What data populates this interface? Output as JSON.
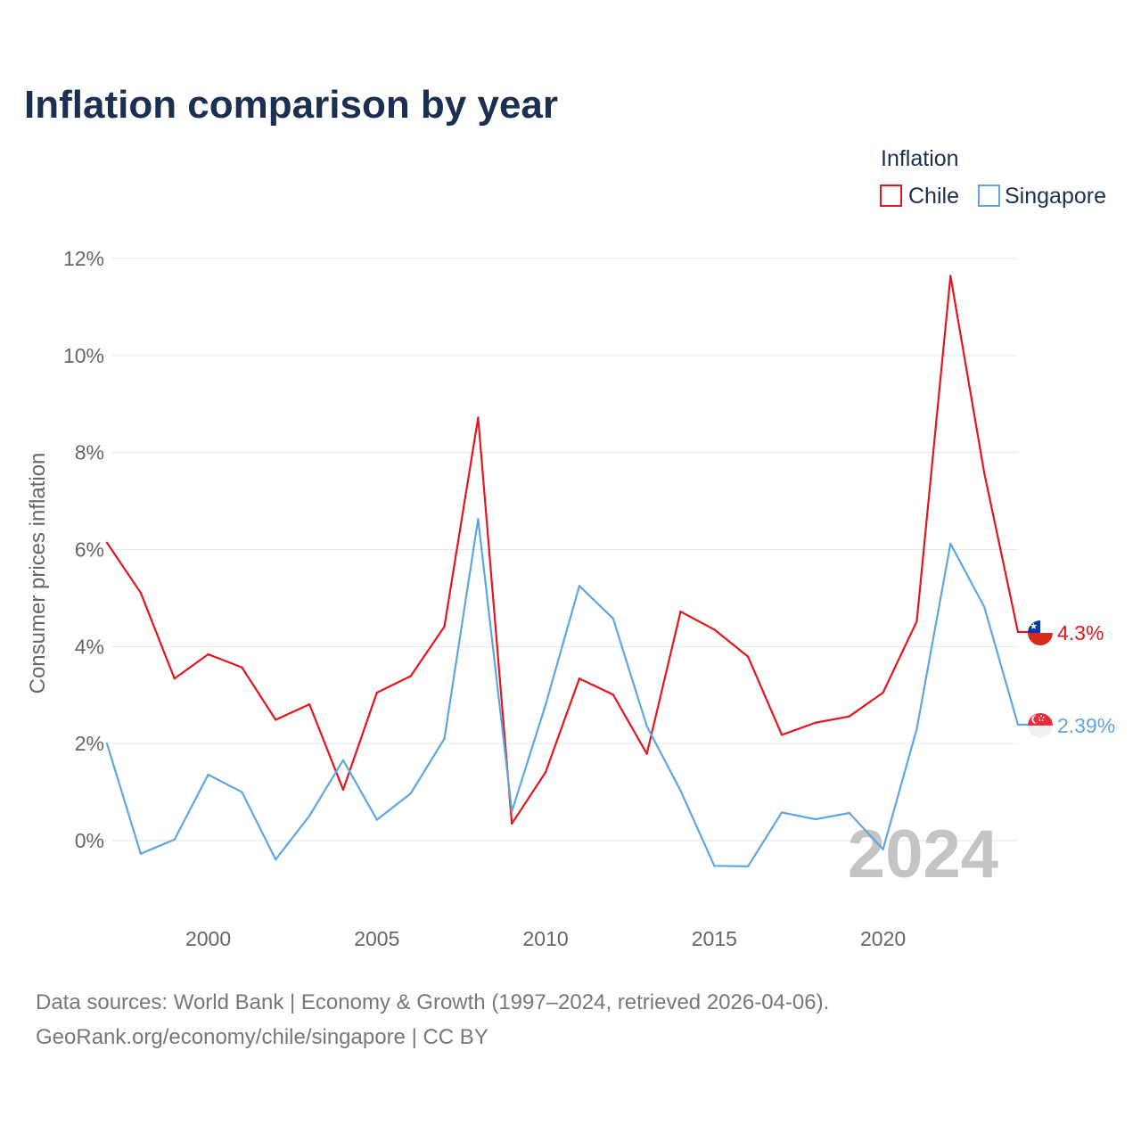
{
  "chart_data": {
    "type": "line",
    "title": "Inflation comparison by year",
    "legend_title": "Inflation",
    "legend_position": "top-right",
    "ylabel": "Consumer prices inflation",
    "xlabel": "",
    "x": [
      1997,
      1998,
      1999,
      2000,
      2001,
      2002,
      2003,
      2004,
      2005,
      2006,
      2007,
      2008,
      2009,
      2010,
      2011,
      2012,
      2013,
      2014,
      2015,
      2016,
      2017,
      2018,
      2019,
      2020,
      2021,
      2022,
      2023,
      2024
    ],
    "x_ticks": [
      2000,
      2005,
      2010,
      2015,
      2020
    ],
    "x_tick_labels": [
      "2000",
      "2005",
      "2010",
      "2015",
      "2020"
    ],
    "xlim": [
      1997,
      2024
    ],
    "y_ticks": [
      0,
      2,
      4,
      6,
      8,
      10,
      12
    ],
    "y_tick_labels": [
      "0%",
      "2%",
      "4%",
      "6%",
      "8%",
      "10%",
      "12%"
    ],
    "ylim": [
      -1.3,
      12
    ],
    "grid": true,
    "current_year_label": "2024",
    "series": [
      {
        "name": "Chile",
        "color": "#e4151d",
        "flag": "chile-flag",
        "end_label": "4.3%",
        "values": [
          6.14,
          5.11,
          3.34,
          3.84,
          3.57,
          2.49,
          2.81,
          1.05,
          3.05,
          3.39,
          4.41,
          8.72,
          0.35,
          1.41,
          3.34,
          3.01,
          1.79,
          4.72,
          4.35,
          3.79,
          2.18,
          2.43,
          2.56,
          3.05,
          4.52,
          11.64,
          7.58,
          4.3
        ]
      },
      {
        "name": "Singapore",
        "color": "#5ea6e3",
        "flag": "singapore-flag",
        "end_label": "2.39%",
        "values": [
          2.0,
          -0.27,
          0.02,
          1.36,
          1.0,
          -0.39,
          0.51,
          1.66,
          0.43,
          0.97,
          2.1,
          6.63,
          0.6,
          2.8,
          5.25,
          4.58,
          2.36,
          1.03,
          -0.52,
          -0.53,
          0.58,
          0.44,
          0.57,
          -0.18,
          2.3,
          6.12,
          4.82,
          2.39
        ]
      }
    ]
  },
  "footer": {
    "line1": "Data sources: World Bank | Economy & Growth (1997–2024, retrieved 2026-04-06).",
    "line2": "GeoRank.org/economy/chile/singapore | CC BY"
  }
}
